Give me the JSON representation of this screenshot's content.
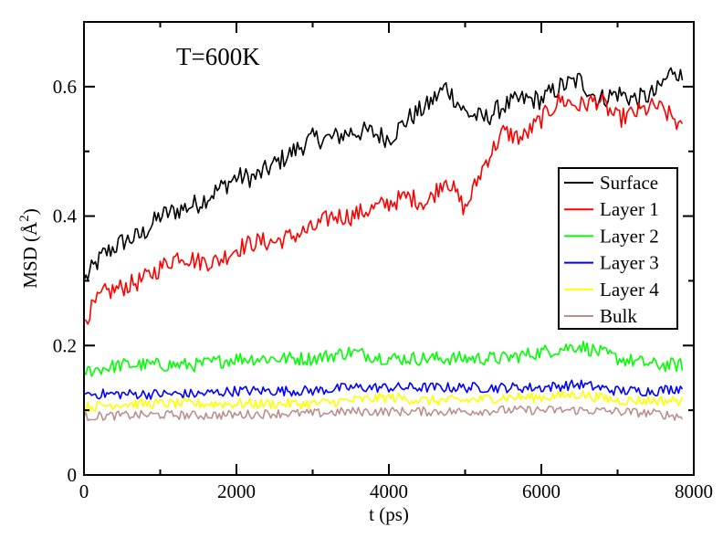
{
  "chart_data": {
    "type": "line",
    "title": "",
    "annotation": "T=600K",
    "xlabel": "t (ps)",
    "ylabel_prefix": "MSD (",
    "ylabel_unit": "Å",
    "ylabel_exponent": "2",
    "ylabel_suffix": ")",
    "xlim": [
      0,
      8000
    ],
    "ylim": [
      0,
      0.7
    ],
    "xticks": [
      0,
      2000,
      4000,
      6000,
      8000
    ],
    "xtick_labels": [
      "0",
      "2000",
      "4000",
      "6000",
      "8000"
    ],
    "yticks": [
      0,
      0.2,
      0.4,
      0.6
    ],
    "ytick_labels": [
      "0",
      "0.2",
      "0.4",
      "0.6"
    ],
    "grid": false,
    "legend_position": "right",
    "series": [
      {
        "name": "Surface",
        "color": "#000000",
        "x": [
          0,
          250,
          500,
          750,
          1000,
          1250,
          1500,
          1750,
          2000,
          2250,
          2500,
          2750,
          3000,
          3250,
          3500,
          3750,
          4000,
          4250,
          4500,
          4750,
          5000,
          5250,
          5500,
          5750,
          6000,
          6250,
          6500,
          6750,
          7000,
          7250,
          7500,
          7750,
          7850
        ],
        "y": [
          0.3,
          0.34,
          0.36,
          0.37,
          0.4,
          0.41,
          0.42,
          0.44,
          0.46,
          0.46,
          0.48,
          0.5,
          0.52,
          0.52,
          0.53,
          0.53,
          0.52,
          0.55,
          0.57,
          0.6,
          0.56,
          0.55,
          0.57,
          0.58,
          0.58,
          0.6,
          0.61,
          0.58,
          0.59,
          0.58,
          0.59,
          0.63,
          0.61
        ],
        "noise": 0.016
      },
      {
        "name": "Layer 1",
        "color": "#ff0000",
        "x": [
          0,
          250,
          500,
          750,
          1000,
          1250,
          1500,
          1750,
          2000,
          2250,
          2500,
          2750,
          3000,
          3250,
          3500,
          3750,
          4000,
          4250,
          4500,
          4750,
          5000,
          5250,
          5500,
          5750,
          6000,
          6250,
          6500,
          6750,
          7000,
          7250,
          7500,
          7750,
          7850
        ],
        "y": [
          0.24,
          0.28,
          0.29,
          0.3,
          0.32,
          0.34,
          0.33,
          0.33,
          0.35,
          0.36,
          0.36,
          0.37,
          0.38,
          0.4,
          0.4,
          0.41,
          0.42,
          0.43,
          0.42,
          0.46,
          0.41,
          0.48,
          0.53,
          0.52,
          0.55,
          0.58,
          0.57,
          0.58,
          0.55,
          0.56,
          0.57,
          0.55,
          0.53
        ],
        "noise": 0.015
      },
      {
        "name": "Layer 2",
        "color": "#00ff00",
        "x": [
          0,
          500,
          1000,
          1500,
          2000,
          2500,
          3000,
          3500,
          4000,
          4500,
          5000,
          5500,
          6000,
          6500,
          7000,
          7500,
          7850
        ],
        "y": [
          0.16,
          0.17,
          0.17,
          0.17,
          0.18,
          0.18,
          0.18,
          0.19,
          0.18,
          0.18,
          0.18,
          0.18,
          0.19,
          0.2,
          0.18,
          0.17,
          0.17
        ],
        "noise": 0.011
      },
      {
        "name": "Layer 3",
        "color": "#0000ff",
        "x": [
          0,
          500,
          1000,
          1500,
          2000,
          2500,
          3000,
          3500,
          4000,
          4500,
          5000,
          5500,
          6000,
          6500,
          7000,
          7500,
          7850
        ],
        "y": [
          0.125,
          0.125,
          0.125,
          0.125,
          0.13,
          0.13,
          0.13,
          0.135,
          0.135,
          0.135,
          0.135,
          0.135,
          0.135,
          0.14,
          0.13,
          0.13,
          0.135
        ],
        "noise": 0.008
      },
      {
        "name": "Layer 4",
        "color": "#ffff00",
        "x": [
          0,
          500,
          1000,
          1500,
          2000,
          2500,
          3000,
          3500,
          4000,
          4500,
          5000,
          5500,
          6000,
          6500,
          7000,
          7500,
          7850
        ],
        "y": [
          0.105,
          0.11,
          0.11,
          0.11,
          0.11,
          0.11,
          0.11,
          0.115,
          0.12,
          0.115,
          0.115,
          0.12,
          0.12,
          0.125,
          0.115,
          0.115,
          0.115
        ],
        "noise": 0.008
      },
      {
        "name": "Bulk",
        "color": "#bc8f8f",
        "x": [
          0,
          500,
          1000,
          1500,
          2000,
          2500,
          3000,
          3500,
          4000,
          4500,
          5000,
          5500,
          6000,
          6500,
          7000,
          7500,
          7850
        ],
        "y": [
          0.09,
          0.092,
          0.093,
          0.092,
          0.093,
          0.095,
          0.095,
          0.098,
          0.098,
          0.098,
          0.098,
          0.1,
          0.1,
          0.1,
          0.098,
          0.095,
          0.09
        ],
        "noise": 0.007
      }
    ]
  }
}
